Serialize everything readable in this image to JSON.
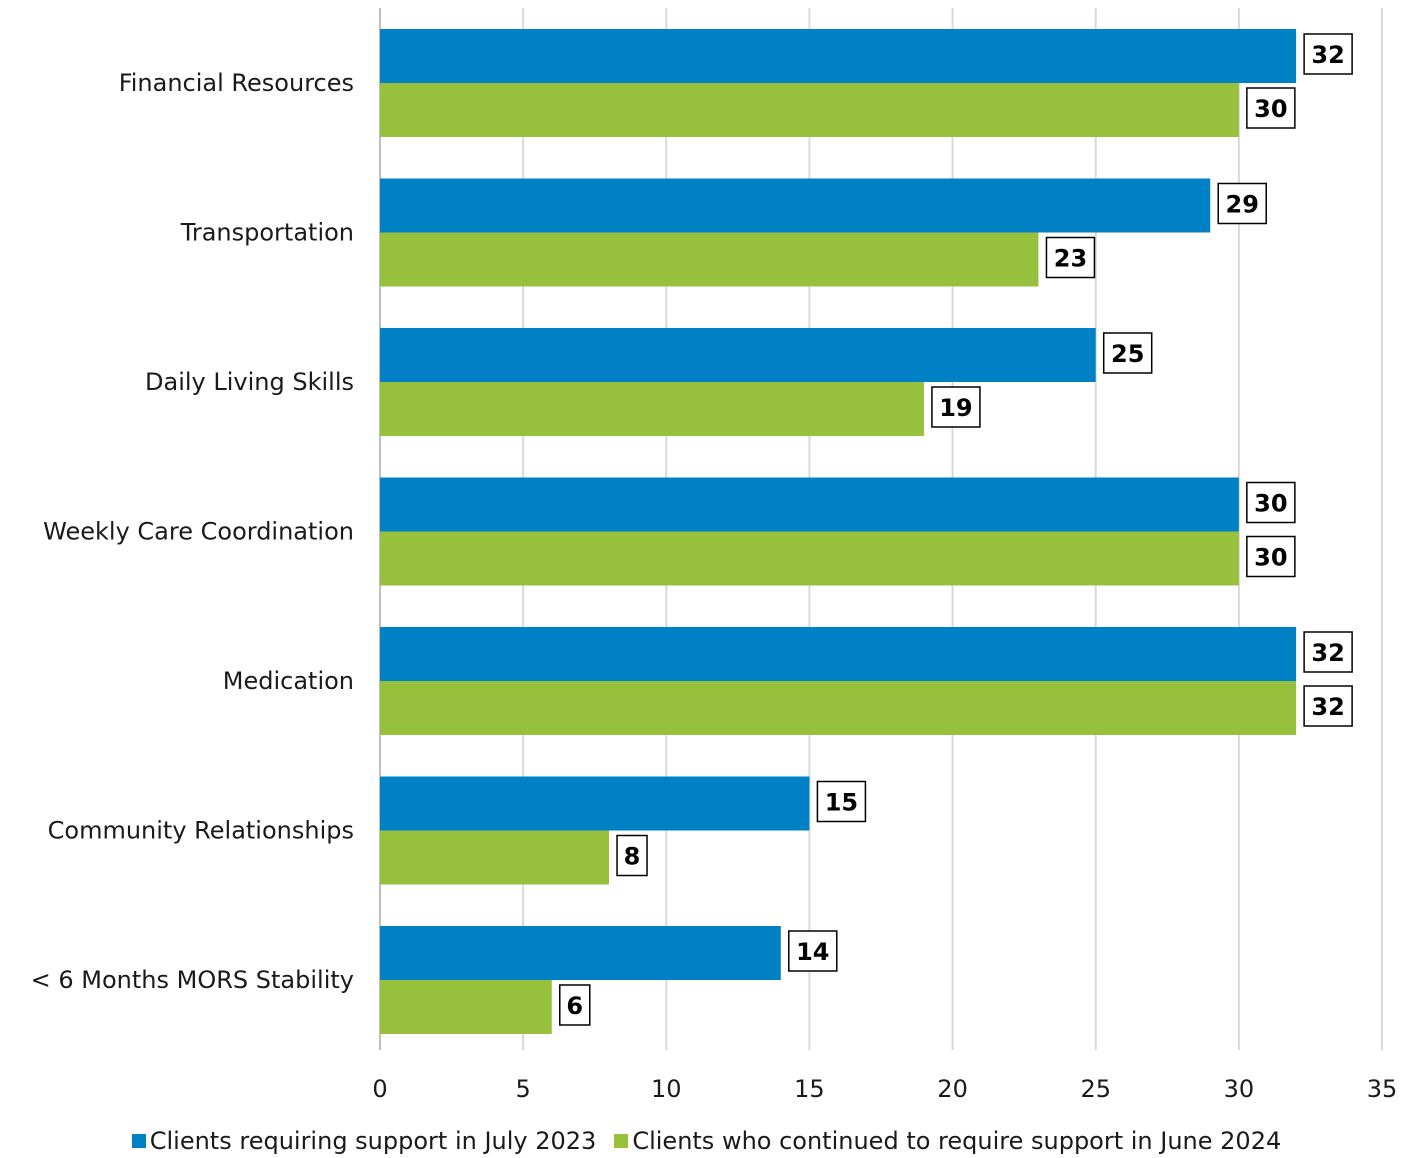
{
  "chart_data": {
    "type": "bar",
    "orientation": "horizontal",
    "categories": [
      "Financial Resources",
      "Transportation",
      "Daily Living Skills",
      "Weekly Care Coordination",
      "Medication",
      "Community Relationships",
      "< 6 Months MORS Stability"
    ],
    "series": [
      {
        "name": "Clients requiring support in July 2023",
        "color": "#0081C6",
        "values": [
          32,
          29,
          25,
          30,
          32,
          15,
          14
        ]
      },
      {
        "name": "Clients who continued to require support in June 2024",
        "color": "#97C13C",
        "values": [
          30,
          23,
          19,
          30,
          32,
          8,
          6
        ]
      }
    ],
    "xlim": [
      0,
      35
    ],
    "xticks": [
      0,
      5,
      10,
      15,
      20,
      25,
      30,
      35
    ],
    "grid": "vertical",
    "legend_position": "bottom",
    "data_labels": true,
    "title": "",
    "xlabel": "",
    "ylabel": ""
  }
}
